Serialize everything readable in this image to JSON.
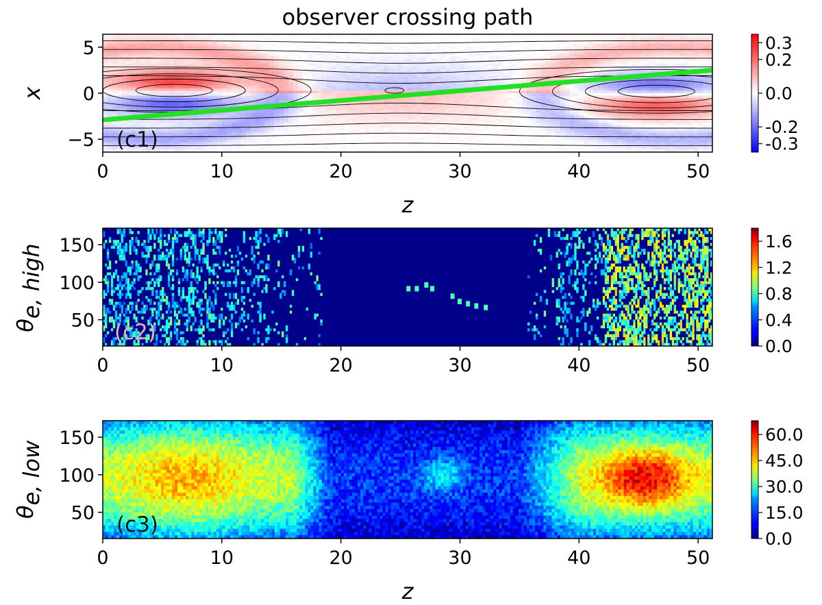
{
  "chart_data": [
    {
      "panel": "c1",
      "type": "heatmap",
      "title": "observer crossing path",
      "panel_label": "(c1)",
      "xlabel": "z",
      "ylabel": "x",
      "xlim": [
        0,
        51.2
      ],
      "ylim": [
        -6.4,
        6.4
      ],
      "xticks": [
        0,
        10,
        20,
        30,
        40,
        50
      ],
      "yticks": [
        -5,
        0,
        5
      ],
      "ytick_labels": [
        "−5",
        "0",
        "5"
      ],
      "colormap": "bwr",
      "clim": [
        -0.35,
        0.35
      ],
      "colorbar_ticks": [
        0.3,
        0.2,
        0.0,
        -0.2,
        -0.3
      ],
      "colorbar_tick_labels": [
        "0.3",
        "0.2",
        "0.0",
        "-0.2",
        "-0.3"
      ],
      "overlay": {
        "type": "line",
        "name": "observer path",
        "color": "#22e022",
        "x": [
          0,
          51.2
        ],
        "y": [
          -2.9,
          2.5
        ]
      },
      "features": [
        {
          "name": "flux rope O-point",
          "z": 6,
          "x": 0.3
        },
        {
          "name": "flux rope O-point",
          "z": 46.5,
          "x": 0.2
        },
        {
          "name": "X-point",
          "z": 24.5,
          "x": 0.3
        }
      ]
    },
    {
      "panel": "c2",
      "type": "heatmap",
      "panel_label": "(c2)",
      "xlabel": "",
      "ylabel": "θe,high",
      "ylabel_main": "θ",
      "ylabel_sub": "e, high",
      "xlim": [
        0,
        51.2
      ],
      "ylim": [
        15,
        172
      ],
      "xticks": [
        0,
        10,
        20,
        30,
        40,
        50
      ],
      "yticks": [
        50,
        100,
        150
      ],
      "colormap": "jet",
      "clim": [
        0,
        1.8
      ],
      "colorbar_ticks": [
        1.6,
        1.2,
        0.8,
        0.4,
        0.0
      ],
      "colorbar_tick_labels": [
        "1.6",
        "1.2",
        "0.8",
        "0.4",
        "0.0"
      ]
    },
    {
      "panel": "c3",
      "type": "heatmap",
      "panel_label": "(c3)",
      "xlabel": "z",
      "ylabel": "θe,low",
      "ylabel_main": "θ",
      "ylabel_sub": "e, low",
      "xlim": [
        0,
        51.2
      ],
      "ylim": [
        15,
        172
      ],
      "xticks": [
        0,
        10,
        20,
        30,
        40,
        50
      ],
      "yticks": [
        50,
        100,
        150
      ],
      "colormap": "jet",
      "clim": [
        0,
        68
      ],
      "colorbar_ticks": [
        60.0,
        45.0,
        30.0,
        15.0,
        0.0
      ],
      "colorbar_tick_labels": [
        "60.0",
        "45.0",
        "30.0",
        "15.0",
        "0.0"
      ]
    }
  ]
}
